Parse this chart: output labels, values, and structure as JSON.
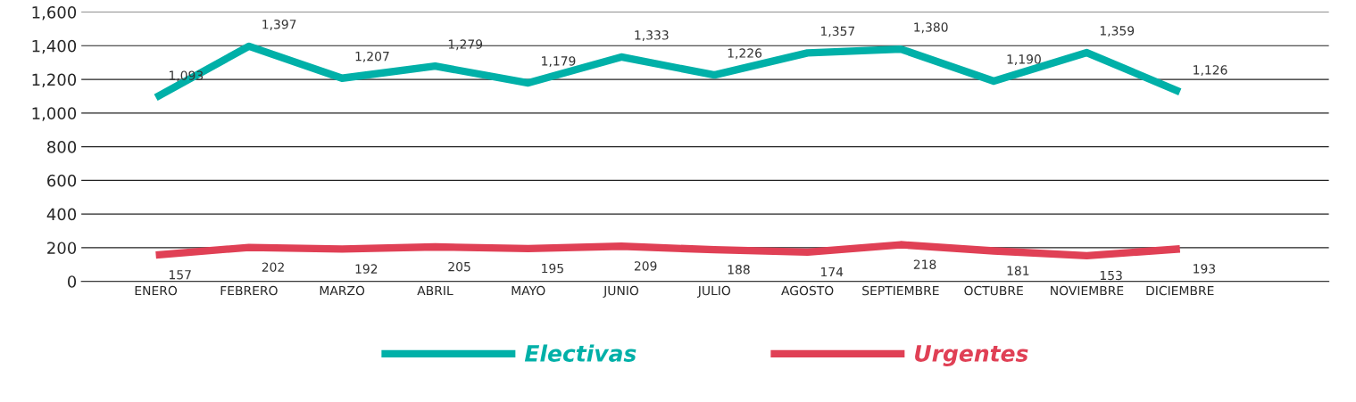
{
  "chart_data": {
    "type": "line",
    "categories": [
      "ENERO",
      "FEBRERO",
      "MARZO",
      "ABRIL",
      "MAYO",
      "JUNIO",
      "JULIO",
      "AGOSTO",
      "SEPTIEMBRE",
      "OCTUBRE",
      "NOVIEMBRE",
      "DICIEMBRE"
    ],
    "series": [
      {
        "name": "Electivas",
        "color": "#00b0a8",
        "values": [
          1093,
          1397,
          1207,
          1279,
          1179,
          1333,
          1226,
          1357,
          1380,
          1190,
          1359,
          1126
        ],
        "value_labels": [
          "1,093",
          "1,397",
          "1,207",
          "1,279",
          "1,179",
          "1,333",
          "1,226",
          "1,357",
          "1,380",
          "1,190",
          "1,359",
          "1,126"
        ]
      },
      {
        "name": "Urgentes",
        "color": "#e04055",
        "values": [
          157,
          202,
          192,
          205,
          195,
          209,
          188,
          174,
          218,
          181,
          153,
          193
        ],
        "value_labels": [
          "157",
          "202",
          "192",
          "205",
          "195",
          "209",
          "188",
          "174",
          "218",
          "181",
          "153",
          "193"
        ]
      }
    ],
    "ylim": [
      0,
      1600
    ],
    "yticks": [
      0,
      200,
      400,
      600,
      800,
      {
        "value": 1000,
        "label": "1,000"
      },
      {
        "value": 1200,
        "label": "1,200"
      },
      {
        "value": 1400,
        "label": "1,400"
      },
      {
        "value": 1600,
        "label": "1,600"
      }
    ],
    "grid": "y",
    "legend": "bottom",
    "marker": "none",
    "line_style": "solid"
  }
}
